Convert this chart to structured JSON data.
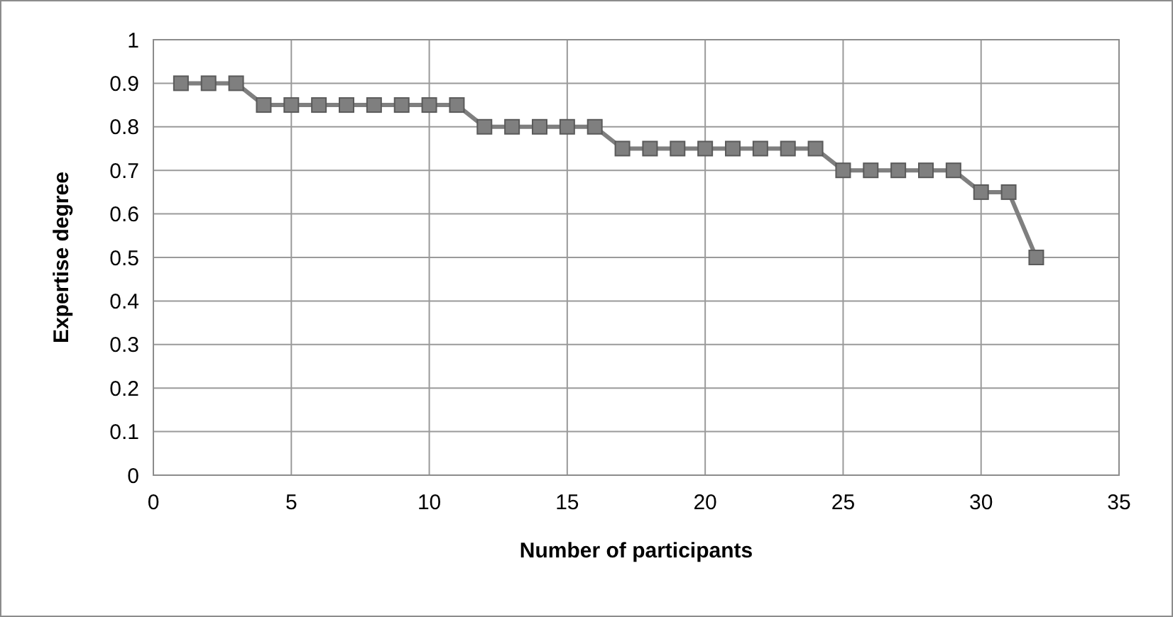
{
  "chart_data": {
    "type": "line",
    "xlabel": "Number of participants",
    "ylabel": "Expertise degree",
    "x": [
      1,
      2,
      3,
      4,
      5,
      6,
      7,
      8,
      9,
      10,
      11,
      12,
      13,
      14,
      15,
      16,
      17,
      18,
      19,
      20,
      21,
      22,
      23,
      24,
      25,
      26,
      27,
      28,
      29,
      30,
      31,
      32
    ],
    "series": [
      {
        "color": "#7f7f7f",
        "values": [
          0.9,
          0.9,
          0.9,
          0.85,
          0.85,
          0.85,
          0.85,
          0.85,
          0.85,
          0.85,
          0.85,
          0.8,
          0.8,
          0.8,
          0.8,
          0.8,
          0.75,
          0.75,
          0.75,
          0.75,
          0.75,
          0.75,
          0.75,
          0.75,
          0.7,
          0.7,
          0.7,
          0.7,
          0.7,
          0.65,
          0.65,
          0.5
        ]
      }
    ],
    "xlim": [
      0,
      35
    ],
    "xticks": [
      0,
      5,
      10,
      15,
      20,
      25,
      30,
      35
    ],
    "ylim": [
      0,
      1
    ],
    "yticks": [
      0,
      0.1,
      0.2,
      0.3,
      0.4,
      0.5,
      0.6,
      0.7,
      0.8,
      0.9,
      1
    ],
    "grid": true,
    "marker": "square",
    "line_style": "solid"
  }
}
